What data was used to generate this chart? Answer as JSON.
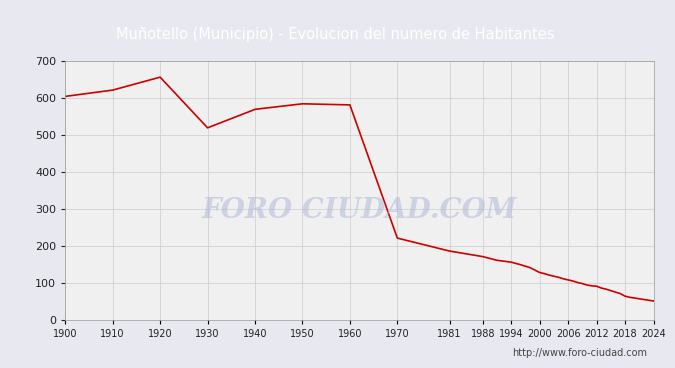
{
  "title": "Muñotello (Municipio) - Evolucion del numero de Habitantes",
  "title_color": "white",
  "title_bg_color": "#4472C4",
  "url_text": "http://www.foro-ciudad.com",
  "watermark": "FORO CIUDAD.COM",
  "years": [
    1900,
    1910,
    1920,
    1930,
    1940,
    1950,
    1960,
    1970,
    1981,
    1988,
    1991,
    1994,
    1996,
    1998,
    2000,
    2001,
    2002,
    2003,
    2004,
    2005,
    2006,
    2007,
    2008,
    2009,
    2010,
    2011,
    2012,
    2013,
    2014,
    2015,
    2016,
    2017,
    2018,
    2019,
    2020,
    2021,
    2022,
    2023,
    2024
  ],
  "population": [
    603,
    620,
    655,
    518,
    568,
    583,
    580,
    220,
    185,
    170,
    160,
    155,
    148,
    140,
    127,
    124,
    120,
    117,
    114,
    110,
    107,
    104,
    100,
    97,
    93,
    91,
    90,
    85,
    82,
    78,
    74,
    70,
    63,
    60,
    58,
    56,
    54,
    52,
    50
  ],
  "line_color": "#CC0000",
  "bg_color": "#E8E8F0",
  "plot_bg_color": "#F0F0F0",
  "grid_color": "#CCCCCC",
  "ylim": [
    0,
    700
  ],
  "ylabel_ticks": [
    0,
    100,
    200,
    300,
    400,
    500,
    600,
    700
  ],
  "xtick_years": [
    1900,
    1910,
    1920,
    1930,
    1940,
    1950,
    1960,
    1970,
    1981,
    1988,
    1994,
    2000,
    2006,
    2012,
    2018,
    2024
  ],
  "xtick_labels": [
    "1900",
    "1910",
    "1920",
    "1930",
    "1940",
    "1950",
    "1960",
    "1970",
    "1981",
    "1988",
    "1994",
    "2000",
    "2006",
    "2012",
    "2018",
    "2024"
  ]
}
